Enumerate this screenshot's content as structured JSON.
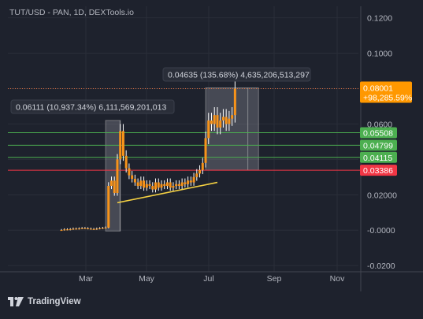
{
  "header": {
    "symbol_title": "TUT/USD - PAN, 1D, DEXTools.io"
  },
  "branding": {
    "logo_icon": "tradingview-logo-icon",
    "label": "TradingView"
  },
  "chart_data": {
    "type": "candlestick",
    "title": "TUT/USD - PAN, 1D, DEXTools.io",
    "x_ticks": [
      "Mar",
      "May",
      "Jul",
      "Sep",
      "Nov"
    ],
    "y_ticks": [
      "0.1200",
      "0.1000",
      "0.0800",
      "0.0600",
      "0.04000",
      "0.02000",
      "-0.0000",
      "-0.0200"
    ],
    "ylim": [
      -0.0235,
      0.1265
    ],
    "price_path": [
      [
        0.0,
        5e-05
      ],
      [
        0.5,
        0.0004
      ],
      [
        1.0,
        0.0002
      ],
      [
        1.5,
        0.0005
      ],
      [
        2.0,
        0.0008
      ],
      [
        2.5,
        0.0007
      ],
      [
        3.0,
        0.0009
      ],
      [
        3.5,
        0.0011
      ],
      [
        4.0,
        0.001
      ],
      [
        4.5,
        0.0008
      ],
      [
        5.0,
        0.0006
      ],
      [
        5.5,
        0.0005
      ],
      [
        6.0,
        0.0008
      ],
      [
        6.5,
        0.001
      ],
      [
        7.0,
        0.0012
      ],
      [
        7.5,
        0.0014
      ],
      [
        8.0,
        0.025
      ],
      [
        8.5,
        0.028
      ],
      [
        9.0,
        0.021
      ],
      [
        9.5,
        0.04
      ],
      [
        10.0,
        0.056
      ],
      [
        10.5,
        0.042
      ],
      [
        11.0,
        0.035
      ],
      [
        11.5,
        0.031
      ],
      [
        12.0,
        0.029
      ],
      [
        12.5,
        0.027
      ],
      [
        13.0,
        0.025
      ],
      [
        13.5,
        0.028
      ],
      [
        14.0,
        0.024
      ],
      [
        14.5,
        0.026
      ],
      [
        15.0,
        0.025
      ],
      [
        15.5,
        0.023
      ],
      [
        16.0,
        0.027
      ],
      [
        16.5,
        0.024
      ],
      [
        17.0,
        0.026
      ],
      [
        17.5,
        0.025
      ],
      [
        18.0,
        0.027
      ],
      [
        18.5,
        0.024
      ],
      [
        19.0,
        0.025
      ],
      [
        19.5,
        0.026
      ],
      [
        20.0,
        0.025
      ],
      [
        20.5,
        0.027
      ],
      [
        21.0,
        0.026
      ],
      [
        21.5,
        0.028
      ],
      [
        22.0,
        0.027
      ],
      [
        22.5,
        0.03
      ],
      [
        23.0,
        0.032
      ],
      [
        23.5,
        0.034
      ],
      [
        24.0,
        0.038
      ],
      [
        24.5,
        0.052
      ],
      [
        25.0,
        0.062
      ],
      [
        25.5,
        0.06
      ],
      [
        26.0,
        0.065
      ],
      [
        26.5,
        0.058
      ],
      [
        27.0,
        0.062
      ],
      [
        27.5,
        0.064
      ],
      [
        28.0,
        0.06
      ],
      [
        28.5,
        0.063
      ],
      [
        29.0,
        0.065
      ],
      [
        29.5,
        0.08
      ]
    ],
    "path_x_unit": "weeks from chart start",
    "horizontal_lines": [
      {
        "label": "0.05508",
        "value": 0.05508,
        "color": "#4caf50"
      },
      {
        "label": "0.04799",
        "value": 0.04799,
        "color": "#4caf50"
      },
      {
        "label": "0.04115",
        "value": 0.04115,
        "color": "#4caf50"
      },
      {
        "label": "0.03386",
        "value": 0.03386,
        "color": "#f23645"
      }
    ],
    "last_price": {
      "label": "0.08001",
      "change": "+98,285.59%",
      "value": 0.08001,
      "color": "#ff9800"
    },
    "measure_boxes": [
      {
        "text": "0.06111 (10,937.34%) 6,111,569,201,013",
        "from_week": 7.5,
        "to_week": 10.0,
        "low": -0.0005,
        "high": 0.062
      },
      {
        "text": "0.04635 (135.68%) 4,635,206,513,297",
        "from_week": 24.5,
        "to_week": 33.5,
        "low": 0.0339,
        "high": 0.0804
      }
    ],
    "trendline": {
      "color": "#f5d142",
      "from": [
        9.5,
        0.0155
      ],
      "to": [
        26.5,
        0.027
      ]
    },
    "grid": true,
    "colors": {
      "background": "#1e222d",
      "candles": "#f7931a",
      "wicks": "#ffffff",
      "axis_text": "#b2b5be"
    }
  }
}
